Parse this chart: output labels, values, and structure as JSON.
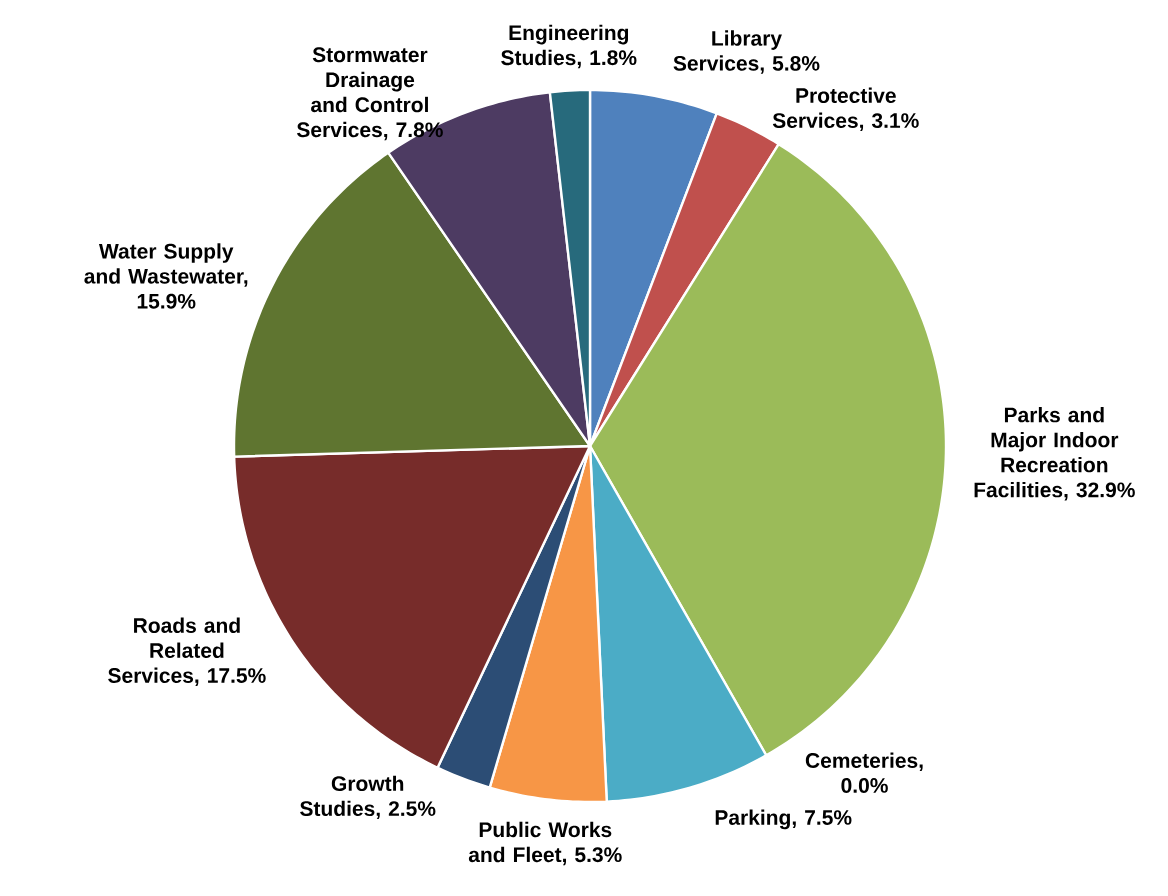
{
  "chart_data": {
    "type": "pie",
    "categories": [
      "Library Services, 5.8%",
      "Protective Services, 3.1%",
      "Parks and Major Indoor Recreation Facilities, 32.9%",
      "Cemeteries, 0.0%",
      "Parking, 7.5%",
      "Public Works and Fleet, 5.3%",
      "Growth Studies, 2.5%",
      "Roads and Related Services, 17.5%",
      "Water Supply and Wastewater, 15.9%",
      "Stormwater Drainage and Control Services, 7.8%",
      "Engineering Studies, 1.8%"
    ],
    "values": [
      5.8,
      3.1,
      32.9,
      0.0,
      7.5,
      5.3,
      2.5,
      17.5,
      15.9,
      7.8,
      1.8
    ],
    "colors": [
      "#4f81bd",
      "#c0504d",
      "#9bbb59",
      "#8064a2",
      "#4bacc6",
      "#f79646",
      "#2c4d75",
      "#772c2a",
      "#5f7530",
      "#4d3b62",
      "#276a7c"
    ]
  }
}
